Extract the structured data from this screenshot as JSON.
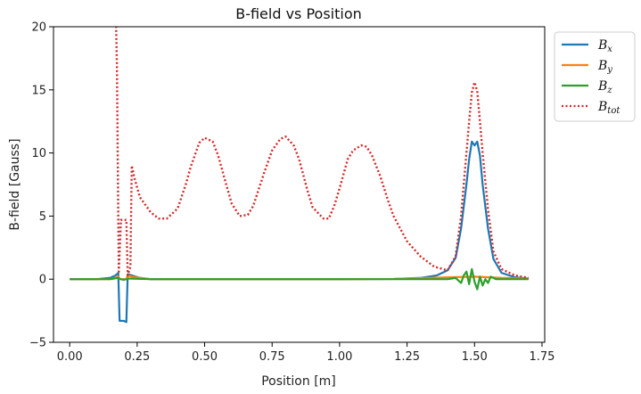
{
  "chart_data": {
    "type": "line",
    "title": "B-field vs Position",
    "xlabel": "Position [m]",
    "ylabel": "B-field [Gauss]",
    "xlim": [
      -0.06,
      1.76
    ],
    "ylim": [
      -5,
      20
    ],
    "xticks": [
      0.0,
      0.25,
      0.5,
      0.75,
      1.0,
      1.25,
      1.5,
      1.75
    ],
    "xtick_labels": [
      "0.00",
      "0.25",
      "0.50",
      "0.75",
      "1.00",
      "1.25",
      "1.50",
      "1.75"
    ],
    "yticks": [
      -5,
      0,
      5,
      10,
      15,
      20
    ],
    "ytick_labels": [
      "−5",
      "0",
      "5",
      "10",
      "15",
      "20"
    ],
    "grid": false,
    "legend_position": "outside-right",
    "series": [
      {
        "name": "B_x",
        "legend_label": {
          "base": "B",
          "sub": "x"
        },
        "color": "#1f77b4",
        "style": "solid",
        "points": [
          [
            0.0,
            0.0
          ],
          [
            0.1,
            0.0
          ],
          [
            0.15,
            0.1
          ],
          [
            0.17,
            0.3
          ],
          [
            0.18,
            0.5
          ],
          [
            0.185,
            -3.3
          ],
          [
            0.2,
            -3.3
          ],
          [
            0.21,
            -3.4
          ],
          [
            0.215,
            0.4
          ],
          [
            0.23,
            0.3
          ],
          [
            0.26,
            0.1
          ],
          [
            0.3,
            0.0
          ],
          [
            0.5,
            0.0
          ],
          [
            1.0,
            0.0
          ],
          [
            1.2,
            0.02
          ],
          [
            1.3,
            0.1
          ],
          [
            1.36,
            0.3
          ],
          [
            1.4,
            0.7
          ],
          [
            1.43,
            1.7
          ],
          [
            1.45,
            4.0
          ],
          [
            1.47,
            7.5
          ],
          [
            1.48,
            9.5
          ],
          [
            1.49,
            10.9
          ],
          [
            1.5,
            10.6
          ],
          [
            1.51,
            10.9
          ],
          [
            1.52,
            9.8
          ],
          [
            1.53,
            7.5
          ],
          [
            1.55,
            4.0
          ],
          [
            1.57,
            1.6
          ],
          [
            1.6,
            0.5
          ],
          [
            1.65,
            0.15
          ],
          [
            1.7,
            0.05
          ]
        ]
      },
      {
        "name": "B_y",
        "legend_label": {
          "base": "B",
          "sub": "y"
        },
        "color": "#ff7f0e",
        "style": "solid",
        "points": [
          [
            0.0,
            0.0
          ],
          [
            0.1,
            0.0
          ],
          [
            0.15,
            0.0
          ],
          [
            0.17,
            0.1
          ],
          [
            0.18,
            0.2
          ],
          [
            0.185,
            0.0
          ],
          [
            0.2,
            0.0
          ],
          [
            0.21,
            0.0
          ],
          [
            0.215,
            0.3
          ],
          [
            0.23,
            0.2
          ],
          [
            0.26,
            0.1
          ],
          [
            0.3,
            0.0
          ],
          [
            0.5,
            0.0
          ],
          [
            1.0,
            0.0
          ],
          [
            1.2,
            0.02
          ],
          [
            1.3,
            0.08
          ],
          [
            1.4,
            0.15
          ],
          [
            1.5,
            0.2
          ],
          [
            1.6,
            0.1
          ],
          [
            1.7,
            0.05
          ]
        ]
      },
      {
        "name": "B_z",
        "legend_label": {
          "base": "B",
          "sub": "z"
        },
        "color": "#2ca02c",
        "style": "solid",
        "points": [
          [
            0.0,
            0.0
          ],
          [
            0.15,
            0.0
          ],
          [
            0.18,
            0.1
          ],
          [
            0.19,
            0.0
          ],
          [
            0.2,
            -0.05
          ],
          [
            0.22,
            0.05
          ],
          [
            0.3,
            0.0
          ],
          [
            1.0,
            0.0
          ],
          [
            1.3,
            0.0
          ],
          [
            1.4,
            0.0
          ],
          [
            1.43,
            0.1
          ],
          [
            1.45,
            -0.3
          ],
          [
            1.46,
            0.3
          ],
          [
            1.47,
            0.6
          ],
          [
            1.48,
            -0.4
          ],
          [
            1.49,
            0.8
          ],
          [
            1.5,
            -0.2
          ],
          [
            1.51,
            -0.8
          ],
          [
            1.52,
            0.2
          ],
          [
            1.53,
            -0.5
          ],
          [
            1.54,
            0.0
          ],
          [
            1.55,
            -0.3
          ],
          [
            1.56,
            0.2
          ],
          [
            1.58,
            0.0
          ],
          [
            1.6,
            0.0
          ],
          [
            1.7,
            0.0
          ]
        ]
      },
      {
        "name": "B_tot",
        "legend_label": {
          "base": "B",
          "sub": "tot"
        },
        "color": "#d62728",
        "style": "dotted",
        "points": [
          [
            0.17,
            21.0
          ],
          [
            0.172,
            20.0
          ],
          [
            0.175,
            17.0
          ],
          [
            0.18,
            5.0
          ],
          [
            0.182,
            0.6
          ],
          [
            0.19,
            4.7
          ],
          [
            0.21,
            4.7
          ],
          [
            0.215,
            0.3
          ],
          [
            0.225,
            1.0
          ],
          [
            0.23,
            9.0
          ],
          [
            0.24,
            8.0
          ],
          [
            0.26,
            6.5
          ],
          [
            0.3,
            5.3
          ],
          [
            0.33,
            4.8
          ],
          [
            0.36,
            4.8
          ],
          [
            0.4,
            5.6
          ],
          [
            0.43,
            7.5
          ],
          [
            0.45,
            9.0
          ],
          [
            0.48,
            10.8
          ],
          [
            0.5,
            11.2
          ],
          [
            0.53,
            10.9
          ],
          [
            0.55,
            9.8
          ],
          [
            0.58,
            7.5
          ],
          [
            0.6,
            6.0
          ],
          [
            0.63,
            5.0
          ],
          [
            0.66,
            5.1
          ],
          [
            0.68,
            5.8
          ],
          [
            0.72,
            8.4
          ],
          [
            0.75,
            10.2
          ],
          [
            0.78,
            11.1
          ],
          [
            0.8,
            11.3
          ],
          [
            0.83,
            10.6
          ],
          [
            0.85,
            9.5
          ],
          [
            0.88,
            7.1
          ],
          [
            0.9,
            5.7
          ],
          [
            0.94,
            4.8
          ],
          [
            0.96,
            4.8
          ],
          [
            0.98,
            5.8
          ],
          [
            1.0,
            7.2
          ],
          [
            1.03,
            9.5
          ],
          [
            1.05,
            10.2
          ],
          [
            1.08,
            10.6
          ],
          [
            1.1,
            10.5
          ],
          [
            1.12,
            9.8
          ],
          [
            1.15,
            8.2
          ],
          [
            1.18,
            6.2
          ],
          [
            1.2,
            5.0
          ],
          [
            1.25,
            3.0
          ],
          [
            1.3,
            1.8
          ],
          [
            1.35,
            1.0
          ],
          [
            1.4,
            0.7
          ],
          [
            1.43,
            1.8
          ],
          [
            1.45,
            5.0
          ],
          [
            1.47,
            10.0
          ],
          [
            1.48,
            12.5
          ],
          [
            1.49,
            14.8
          ],
          [
            1.5,
            15.6
          ],
          [
            1.51,
            14.9
          ],
          [
            1.52,
            12.5
          ],
          [
            1.53,
            10.0
          ],
          [
            1.55,
            5.5
          ],
          [
            1.57,
            2.2
          ],
          [
            1.6,
            0.8
          ],
          [
            1.65,
            0.3
          ],
          [
            1.7,
            0.1
          ]
        ]
      }
    ]
  }
}
